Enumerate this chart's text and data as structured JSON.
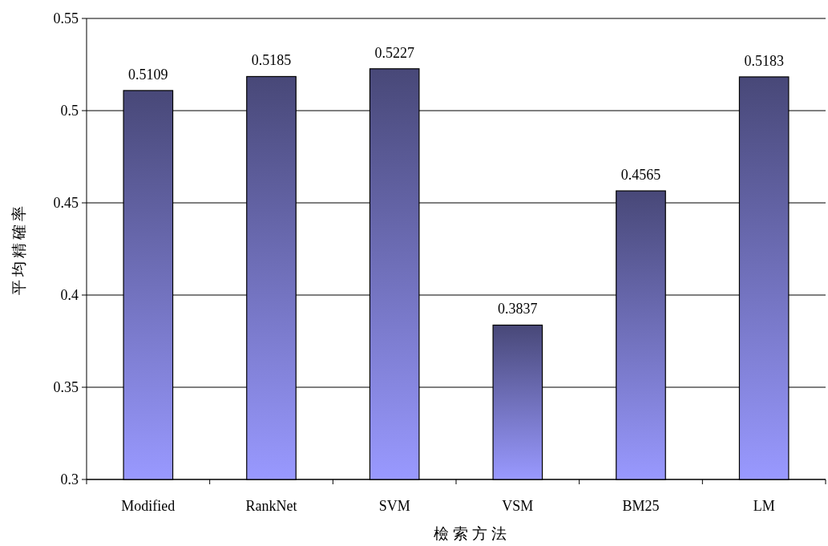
{
  "chart_data": {
    "type": "bar",
    "xlabel": "檢索方法",
    "ylabel": "平均精確率",
    "categories": [
      "Modified",
      "RankNet",
      "SVM",
      "VSM",
      "BM25",
      "LM"
    ],
    "values": [
      0.5109,
      0.5185,
      0.5227,
      0.3837,
      0.4565,
      0.5183
    ],
    "color": "#9999ff",
    "ylim": [
      0.3,
      0.55
    ],
    "yticks": [
      0.3,
      0.35,
      0.4,
      0.45,
      0.5,
      0.55
    ],
    "grid": "y",
    "data_labels": true
  }
}
